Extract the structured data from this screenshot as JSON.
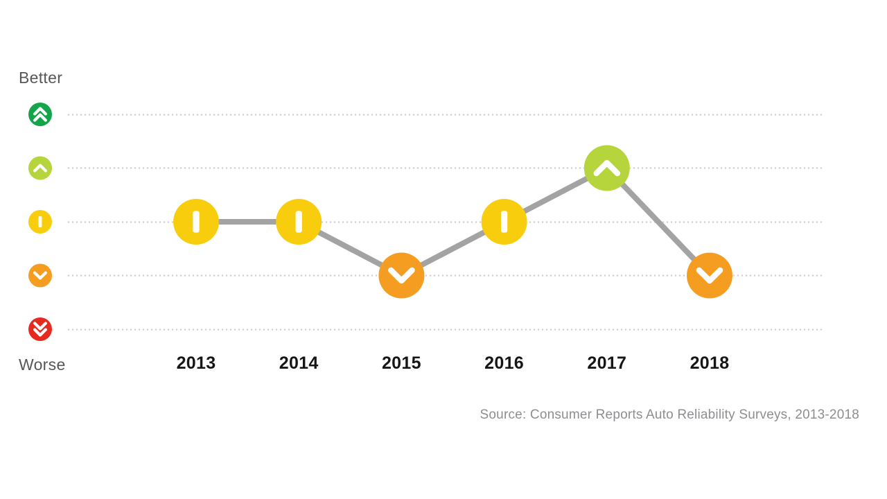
{
  "chart_data": {
    "type": "line",
    "title": "",
    "ylabel_top": "Better",
    "ylabel_bottom": "Worse",
    "x": [
      "2013",
      "2014",
      "2015",
      "2016",
      "2017",
      "2018"
    ],
    "values": [
      3,
      3,
      2,
      3,
      4,
      2
    ],
    "value_scale": "1 = much worse (double chevron down) to 5 = much better (double chevron up)",
    "ylim": [
      1,
      5
    ],
    "grid": "dotted horizontal lines at each level",
    "legend_position": "none",
    "levels": [
      {
        "level": 5,
        "name": "much-better",
        "icon": "double-chevron-up-icon",
        "color": "#14a54b"
      },
      {
        "level": 4,
        "name": "better",
        "icon": "chevron-up-icon",
        "color": "#b6d43c"
      },
      {
        "level": 3,
        "name": "neutral",
        "icon": "vertical-bar-icon",
        "color": "#f8cd0e"
      },
      {
        "level": 2,
        "name": "worse",
        "icon": "chevron-down-icon",
        "color": "#f49d20"
      },
      {
        "level": 1,
        "name": "much-worse",
        "icon": "double-chevron-down-icon",
        "color": "#e52a20"
      }
    ],
    "points": [
      {
        "year": "2013",
        "level": 3
      },
      {
        "year": "2014",
        "level": 3
      },
      {
        "year": "2015",
        "level": 2
      },
      {
        "year": "2016",
        "level": 3
      },
      {
        "year": "2017",
        "level": 4
      },
      {
        "year": "2018",
        "level": 2
      }
    ],
    "line_color": "#a3a3a3",
    "glyph_color": "#ffffff",
    "gridline_color": "#cfcfcf"
  },
  "source": {
    "text": "Source: Consumer Reports Auto Reliability Surveys, 2013-2018"
  }
}
